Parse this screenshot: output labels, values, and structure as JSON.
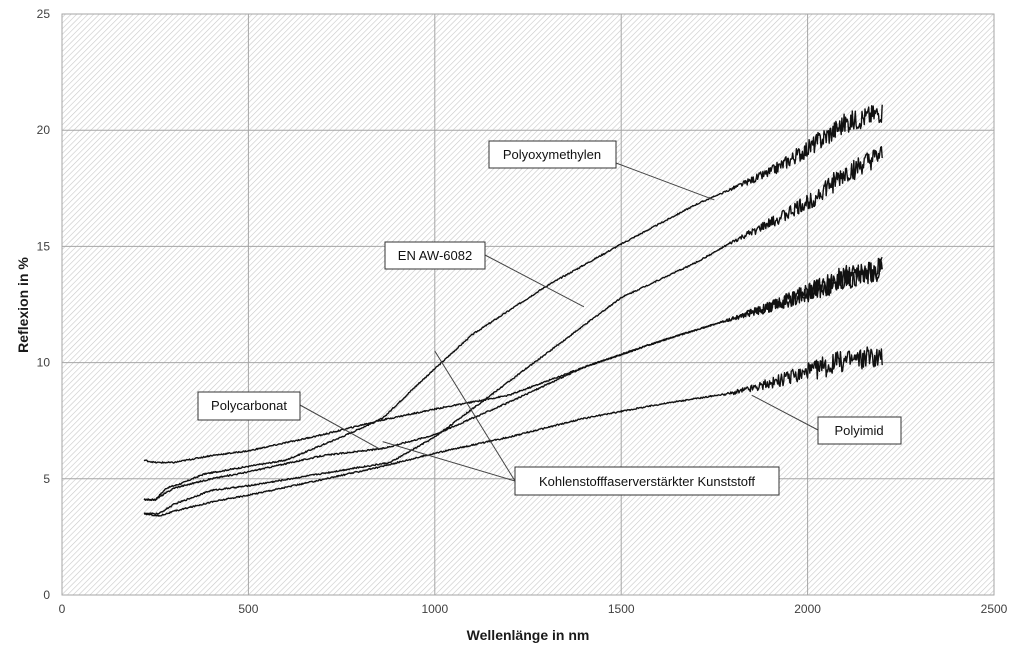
{
  "chart_data": {
    "type": "line",
    "title": "",
    "xlabel": "Wellenlänge in nm",
    "ylabel": "Reflexion in %",
    "xlim": [
      0,
      2500
    ],
    "ylim": [
      0,
      25
    ],
    "x_ticks": [
      0,
      500,
      1000,
      1500,
      2000,
      2500
    ],
    "y_ticks": [
      0,
      5,
      10,
      15,
      20,
      25
    ],
    "grid": true,
    "legend": "callouts",
    "colors": {
      "series": "#111111",
      "grid": "#a6a6a6",
      "hatch": "#c8c8c8"
    },
    "series": [
      {
        "name": "Polyoxymethylen",
        "noise": 0.28,
        "points": [
          [
            220,
            4.1
          ],
          [
            250,
            4.1
          ],
          [
            280,
            4.6
          ],
          [
            320,
            4.8
          ],
          [
            380,
            5.2
          ],
          [
            450,
            5.4
          ],
          [
            600,
            5.8
          ],
          [
            750,
            6.8
          ],
          [
            860,
            7.6
          ],
          [
            950,
            9.0
          ],
          [
            1100,
            11.2
          ],
          [
            1300,
            13.3
          ],
          [
            1500,
            15.1
          ],
          [
            1700,
            16.8
          ],
          [
            1800,
            17.5
          ],
          [
            1900,
            18.2
          ],
          [
            2000,
            19.2
          ],
          [
            2100,
            20.3
          ],
          [
            2200,
            20.8
          ]
        ]
      },
      {
        "name": "EN AW-6082",
        "noise": 0.28,
        "points": [
          [
            220,
            3.5
          ],
          [
            260,
            3.5
          ],
          [
            300,
            3.9
          ],
          [
            400,
            4.5
          ],
          [
            500,
            4.7
          ],
          [
            650,
            5.1
          ],
          [
            800,
            5.5
          ],
          [
            880,
            5.7
          ],
          [
            1000,
            6.8
          ],
          [
            1200,
            9.2
          ],
          [
            1400,
            11.6
          ],
          [
            1500,
            12.8
          ],
          [
            1700,
            14.3
          ],
          [
            1800,
            15.2
          ],
          [
            1900,
            16.0
          ],
          [
            2000,
            16.9
          ],
          [
            2100,
            18.1
          ],
          [
            2200,
            18.9
          ]
        ]
      },
      {
        "name": "Polycarbonat",
        "noise": 0.3,
        "points": [
          [
            220,
            4.1
          ],
          [
            250,
            4.1
          ],
          [
            300,
            4.6
          ],
          [
            400,
            5.0
          ],
          [
            500,
            5.3
          ],
          [
            700,
            6.0
          ],
          [
            860,
            6.3
          ],
          [
            1000,
            6.9
          ],
          [
            1200,
            8.3
          ],
          [
            1400,
            9.8
          ],
          [
            1600,
            10.9
          ],
          [
            1800,
            11.9
          ],
          [
            1900,
            12.4
          ],
          [
            2000,
            13.0
          ],
          [
            2100,
            13.7
          ],
          [
            2200,
            14.1
          ]
        ]
      },
      {
        "name": "Kohlenstofffaserverstärkter Kunststoff",
        "noise": 0.3,
        "points": [
          [
            220,
            5.8
          ],
          [
            250,
            5.7
          ],
          [
            300,
            5.7
          ],
          [
            400,
            6.0
          ],
          [
            500,
            6.2
          ],
          [
            700,
            6.9
          ],
          [
            850,
            7.5
          ],
          [
            1000,
            8.0
          ],
          [
            1200,
            8.6
          ],
          [
            1400,
            9.8
          ],
          [
            1600,
            10.9
          ],
          [
            1800,
            11.9
          ],
          [
            1900,
            12.4
          ],
          [
            2000,
            13.0
          ],
          [
            2100,
            13.6
          ],
          [
            2200,
            14.0
          ]
        ]
      },
      {
        "name": "Polyimid",
        "noise": 0.3,
        "points": [
          [
            220,
            3.5
          ],
          [
            260,
            3.4
          ],
          [
            300,
            3.6
          ],
          [
            400,
            4.0
          ],
          [
            500,
            4.3
          ],
          [
            650,
            4.8
          ],
          [
            850,
            5.5
          ],
          [
            1000,
            6.1
          ],
          [
            1200,
            6.8
          ],
          [
            1400,
            7.6
          ],
          [
            1600,
            8.2
          ],
          [
            1800,
            8.7
          ],
          [
            1900,
            9.1
          ],
          [
            2000,
            9.6
          ],
          [
            2100,
            10.1
          ],
          [
            2200,
            10.3
          ]
        ]
      }
    ],
    "annotations": [
      {
        "text": "Polyoxymethylen",
        "target": [
          1750,
          17.0
        ]
      },
      {
        "text": "EN AW-6082",
        "target": [
          1400,
          12.4
        ]
      },
      {
        "text": "Polycarbonat",
        "target": [
          850,
          6.3
        ]
      },
      {
        "text": "Kohlenstofffaserverstärkter Kunststoff",
        "target": [
          1000,
          10.5
        ]
      },
      {
        "text": "Polyimid",
        "target": [
          1850,
          8.6
        ]
      }
    ]
  }
}
